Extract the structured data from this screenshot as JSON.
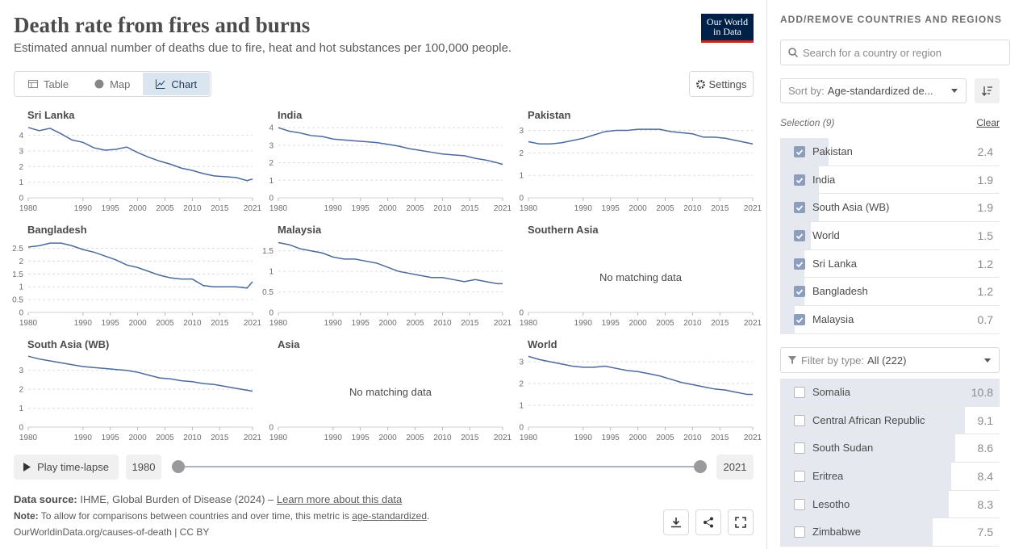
{
  "header": {
    "title": "Death rate from fires and burns",
    "subtitle": "Estimated annual number of deaths due to fire, heat and hot substances per 100,000 people.",
    "logo": [
      "Our World",
      "in Data"
    ]
  },
  "tabs": [
    "Table",
    "Map",
    "Chart"
  ],
  "settings": "Settings",
  "chart_data": [
    {
      "type": "line",
      "title": "Sri Lanka",
      "color": "#4c6a9c",
      "x": [
        1980,
        1982,
        1984,
        1986,
        1988,
        1990,
        1992,
        1994,
        1996,
        1998,
        2000,
        2002,
        2004,
        2006,
        2008,
        2010,
        2012,
        2014,
        2016,
        2018,
        2020,
        2021
      ],
      "values": [
        4.5,
        4.3,
        4.45,
        4.1,
        3.7,
        3.55,
        3.2,
        3.05,
        3.1,
        3.25,
        2.9,
        2.6,
        2.35,
        2.15,
        1.9,
        1.75,
        1.55,
        1.4,
        1.35,
        1.3,
        1.1,
        1.2
      ],
      "xlim": [
        1980,
        2021
      ],
      "xticks": [
        1980,
        1990,
        1995,
        2000,
        2005,
        2010,
        2015,
        2021
      ],
      "ylim": [
        0,
        4.6
      ],
      "yticks": [
        0,
        1,
        2,
        3,
        4
      ],
      "grid": true
    },
    {
      "type": "line",
      "title": "India",
      "color": "#4c6a9c",
      "x": [
        1980,
        1982,
        1984,
        1986,
        1988,
        1990,
        1992,
        1994,
        1996,
        1998,
        2000,
        2002,
        2004,
        2006,
        2008,
        2010,
        2012,
        2014,
        2016,
        2018,
        2020,
        2021
      ],
      "values": [
        4.0,
        3.8,
        3.7,
        3.55,
        3.5,
        3.35,
        3.3,
        3.25,
        3.2,
        3.15,
        3.05,
        2.95,
        2.8,
        2.7,
        2.6,
        2.5,
        2.45,
        2.4,
        2.25,
        2.15,
        2.0,
        1.9
      ],
      "xlim": [
        1980,
        2021
      ],
      "xticks": [
        1980,
        1990,
        1995,
        2000,
        2005,
        2010,
        2015,
        2021
      ],
      "ylim": [
        0,
        4.1
      ],
      "yticks": [
        0,
        1,
        2,
        3,
        4
      ],
      "grid": true
    },
    {
      "type": "line",
      "title": "Pakistan",
      "color": "#4c6a9c",
      "x": [
        1980,
        1982,
        1984,
        1986,
        1988,
        1990,
        1992,
        1994,
        1996,
        1998,
        2000,
        2002,
        2004,
        2006,
        2008,
        2010,
        2012,
        2014,
        2016,
        2018,
        2020,
        2021
      ],
      "values": [
        2.5,
        2.4,
        2.4,
        2.45,
        2.55,
        2.65,
        2.8,
        2.95,
        3.0,
        3.0,
        3.05,
        3.05,
        3.05,
        2.95,
        2.9,
        2.85,
        2.7,
        2.7,
        2.65,
        2.55,
        2.45,
        2.4
      ],
      "xlim": [
        1980,
        2021
      ],
      "xticks": [
        1980,
        1990,
        1995,
        2000,
        2005,
        2010,
        2015,
        2021
      ],
      "ylim": [
        0,
        3.2
      ],
      "yticks": [
        0,
        1,
        2,
        3
      ],
      "grid": true
    },
    {
      "type": "line",
      "title": "Bangladesh",
      "color": "#4c6a9c",
      "x": [
        1980,
        1982,
        1984,
        1986,
        1988,
        1990,
        1992,
        1994,
        1996,
        1998,
        2000,
        2002,
        2004,
        2006,
        2008,
        2010,
        2012,
        2014,
        2016,
        2018,
        2020,
        2021
      ],
      "values": [
        2.55,
        2.6,
        2.7,
        2.7,
        2.6,
        2.45,
        2.35,
        2.2,
        2.05,
        1.85,
        1.75,
        1.6,
        1.45,
        1.35,
        1.3,
        1.3,
        1.05,
        1.0,
        1.0,
        1.0,
        0.95,
        1.2
      ],
      "xlim": [
        1980,
        2021
      ],
      "xticks": [
        1980,
        1990,
        1995,
        2000,
        2005,
        2010,
        2015,
        2021
      ],
      "ylim": [
        0,
        2.8
      ],
      "yticks": [
        0,
        0.5,
        1,
        1.5,
        2,
        2.5
      ],
      "grid": true
    },
    {
      "type": "line",
      "title": "Malaysia",
      "color": "#4c6a9c",
      "x": [
        1980,
        1982,
        1984,
        1986,
        1988,
        1990,
        1992,
        1994,
        1996,
        1998,
        2000,
        2002,
        2004,
        2006,
        2008,
        2010,
        2012,
        2014,
        2016,
        2018,
        2020,
        2021
      ],
      "values": [
        1.7,
        1.65,
        1.55,
        1.5,
        1.45,
        1.35,
        1.3,
        1.3,
        1.25,
        1.2,
        1.1,
        1.0,
        0.95,
        0.9,
        0.85,
        0.85,
        0.8,
        0.75,
        0.8,
        0.75,
        0.7,
        0.7
      ],
      "xlim": [
        1980,
        2021
      ],
      "xticks": [
        1980,
        1990,
        1995,
        2000,
        2005,
        2010,
        2015,
        2021
      ],
      "ylim": [
        0,
        1.75
      ],
      "yticks": [
        0,
        0.5,
        1,
        1.5
      ],
      "grid": true
    },
    {
      "type": "line",
      "title": "Southern Asia",
      "note": "No matching data",
      "xlim": [
        1980,
        2021
      ],
      "xticks": [
        1980,
        1990,
        1995,
        2000,
        2005,
        2010,
        2015,
        2021
      ],
      "ylim": [
        0,
        1
      ],
      "yticks": [
        0
      ],
      "grid": true
    },
    {
      "type": "line",
      "title": "South Asia (WB)",
      "color": "#4c6a9c",
      "x": [
        1980,
        1982,
        1984,
        1986,
        1988,
        1990,
        1992,
        1994,
        1996,
        1998,
        2000,
        2002,
        2004,
        2006,
        2008,
        2010,
        2012,
        2014,
        2016,
        2018,
        2020,
        2021
      ],
      "values": [
        3.75,
        3.6,
        3.5,
        3.4,
        3.3,
        3.2,
        3.15,
        3.1,
        3.05,
        3.0,
        2.9,
        2.75,
        2.6,
        2.55,
        2.45,
        2.4,
        2.3,
        2.25,
        2.15,
        2.05,
        1.95,
        1.9
      ],
      "xlim": [
        1980,
        2021
      ],
      "xticks": [
        1980,
        1990,
        1995,
        2000,
        2005,
        2010,
        2015,
        2021
      ],
      "ylim": [
        0,
        3.8
      ],
      "yticks": [
        0,
        1,
        2,
        3
      ],
      "grid": true
    },
    {
      "type": "line",
      "title": "Asia",
      "note": "No matching data",
      "xlim": [
        1980,
        2021
      ],
      "xticks": [
        1980,
        1990,
        1995,
        2000,
        2005,
        2010,
        2015,
        2021
      ],
      "ylim": [
        0,
        1
      ],
      "yticks": [
        0
      ],
      "grid": true
    },
    {
      "type": "line",
      "title": "World",
      "color": "#4c6a9c",
      "x": [
        1980,
        1982,
        1984,
        1986,
        1988,
        1990,
        1992,
        1994,
        1996,
        1998,
        2000,
        2002,
        2004,
        2006,
        2008,
        2010,
        2012,
        2014,
        2016,
        2018,
        2020,
        2021
      ],
      "values": [
        3.25,
        3.1,
        3.0,
        2.9,
        2.8,
        2.75,
        2.75,
        2.8,
        2.7,
        2.6,
        2.55,
        2.45,
        2.35,
        2.2,
        2.05,
        1.95,
        1.85,
        1.75,
        1.7,
        1.6,
        1.5,
        1.5
      ],
      "xlim": [
        1980,
        2021
      ],
      "xticks": [
        1980,
        1990,
        1995,
        2000,
        2005,
        2010,
        2015,
        2021
      ],
      "ylim": [
        0,
        3.3
      ],
      "yticks": [
        0,
        1,
        2,
        3
      ],
      "grid": true
    }
  ],
  "timeline": {
    "play": "Play time-lapse",
    "start": "1980",
    "end": "2021"
  },
  "footer": {
    "source_label": "Data source:",
    "source": "IHME, Global Burden of Disease (2024) – ",
    "source_link": "Learn more about this data",
    "note_label": "Note:",
    "note": "To allow for comparisons between countries and over time, this metric is ",
    "note_link": "age-standardized",
    "note_end": ".",
    "url": "OurWorldinData.org/causes-of-death | CC BY"
  },
  "sidebar": {
    "title": "ADD/REMOVE COUNTRIES AND REGIONS",
    "search_placeholder": "Search for a country or region",
    "sort_label": "Sort by:",
    "sort_value": "Age-standardized de...",
    "selection_label": "Selection (9)",
    "clear": "Clear",
    "selected": [
      {
        "name": "Pakistan",
        "value": 2.4
      },
      {
        "name": "India",
        "value": 1.9
      },
      {
        "name": "South Asia (WB)",
        "value": 1.9
      },
      {
        "name": "World",
        "value": 1.5
      },
      {
        "name": "Sri Lanka",
        "value": 1.2
      },
      {
        "name": "Bangladesh",
        "value": 1.2
      },
      {
        "name": "Malaysia",
        "value": 0.7
      }
    ],
    "filter_label": "Filter by type:",
    "filter_value": "All (222)",
    "available": [
      {
        "name": "Somalia",
        "value": 10.8
      },
      {
        "name": "Central African Republic",
        "value": 9.1
      },
      {
        "name": "South Sudan",
        "value": 8.6
      },
      {
        "name": "Eritrea",
        "value": 8.4
      },
      {
        "name": "Lesotho",
        "value": 8.3
      },
      {
        "name": "Zimbabwe",
        "value": 7.5
      }
    ]
  }
}
